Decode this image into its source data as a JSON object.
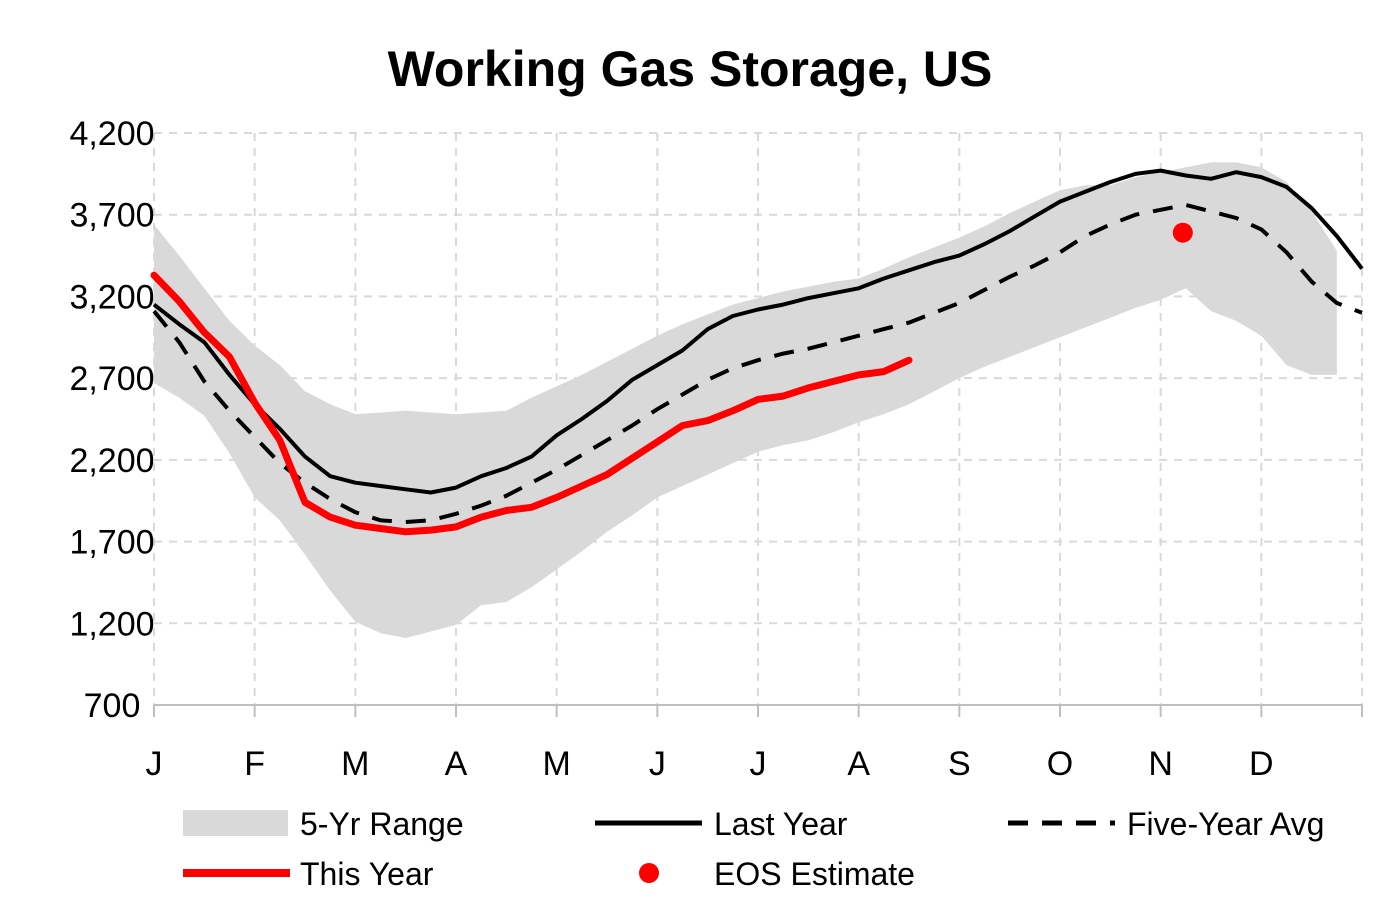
{
  "chart_data": {
    "type": "line",
    "title": "Working Gas Storage, US",
    "xlabel": "",
    "ylabel": "",
    "ylim": [
      700,
      4200
    ],
    "yticks": [
      "4,200",
      "3,700",
      "3,200",
      "2,700",
      "2,200",
      "1,700",
      "1,200",
      "700"
    ],
    "ytick_values": [
      4200,
      3700,
      3200,
      2700,
      2200,
      1700,
      1200,
      700
    ],
    "x_range": [
      0,
      12
    ],
    "month_labels": [
      "J",
      "F",
      "M",
      "A",
      "M",
      "J",
      "J",
      "A",
      "S",
      "O",
      "N",
      "D"
    ],
    "grid": true,
    "legend_position": "bottom",
    "legend": {
      "range": "5-Yr Range",
      "last_year": "Last Year",
      "five_year_avg": "Five-Year Avg",
      "this_year": "This Year",
      "eos": "EOS Estimate"
    },
    "colors": {
      "range": "#d9d9d9",
      "last_year": "#000000",
      "five_year_avg": "#000000",
      "this_year": "#ff0000",
      "eos": "#ff0000",
      "grid": "#d9d9d9"
    },
    "series": [
      {
        "name": "5-Yr Range",
        "kind": "band",
        "x": [
          0,
          0.25,
          0.5,
          0.75,
          1,
          1.25,
          1.5,
          1.75,
          2,
          2.25,
          2.5,
          2.75,
          3,
          3.25,
          3.5,
          3.75,
          4,
          4.25,
          4.5,
          4.75,
          5,
          5.25,
          5.5,
          5.75,
          6,
          6.25,
          6.5,
          6.75,
          7,
          7.25,
          7.5,
          7.75,
          8,
          8.25,
          8.5,
          8.75,
          9,
          9.25,
          9.5,
          9.75,
          10,
          10.25,
          10.5,
          10.75,
          11,
          11.25,
          11.5,
          11.75
        ],
        "upper": [
          3640,
          3450,
          3250,
          3050,
          2900,
          2780,
          2620,
          2540,
          2480,
          2490,
          2500,
          2490,
          2480,
          2490,
          2500,
          2580,
          2650,
          2720,
          2800,
          2880,
          2960,
          3030,
          3090,
          3150,
          3190,
          3230,
          3260,
          3290,
          3310,
          3370,
          3440,
          3500,
          3560,
          3630,
          3710,
          3780,
          3850,
          3880,
          3880,
          3930,
          3960,
          3990,
          4020,
          4020,
          3990,
          3900,
          3720,
          3480
        ],
        "lower": [
          2670,
          2580,
          2470,
          2240,
          1970,
          1830,
          1620,
          1400,
          1210,
          1140,
          1110,
          1150,
          1190,
          1310,
          1330,
          1420,
          1530,
          1640,
          1760,
          1860,
          1970,
          2040,
          2110,
          2180,
          2250,
          2290,
          2320,
          2370,
          2430,
          2480,
          2540,
          2620,
          2700,
          2770,
          2830,
          2890,
          2950,
          3010,
          3070,
          3130,
          3180,
          3250,
          3110,
          3050,
          2960,
          2780,
          2720,
          2720
        ]
      },
      {
        "name": "Last Year",
        "kind": "solid",
        "x": [
          0,
          0.25,
          0.5,
          0.75,
          1,
          1.25,
          1.5,
          1.75,
          2,
          2.25,
          2.5,
          2.75,
          3,
          3.25,
          3.5,
          3.75,
          4,
          4.25,
          4.5,
          4.75,
          5,
          5.25,
          5.5,
          5.75,
          6,
          6.25,
          6.5,
          6.75,
          7,
          7.25,
          7.5,
          7.75,
          8,
          8.25,
          8.5,
          8.75,
          9,
          9.25,
          9.5,
          9.75,
          10,
          10.25,
          10.5,
          10.75,
          11,
          11.25,
          11.5,
          11.75,
          12
        ],
        "y": [
          3150,
          3030,
          2920,
          2720,
          2540,
          2390,
          2220,
          2100,
          2060,
          2040,
          2020,
          2000,
          2030,
          2100,
          2150,
          2220,
          2350,
          2450,
          2560,
          2690,
          2780,
          2870,
          3000,
          3080,
          3120,
          3150,
          3190,
          3220,
          3250,
          3310,
          3360,
          3410,
          3450,
          3520,
          3600,
          3690,
          3780,
          3840,
          3900,
          3950,
          3970,
          3940,
          3920,
          3960,
          3930,
          3870,
          3740,
          3570,
          3370
        ]
      },
      {
        "name": "Five-Year Avg",
        "kind": "dashed",
        "x": [
          0,
          0.25,
          0.5,
          0.75,
          1,
          1.25,
          1.5,
          1.75,
          2,
          2.25,
          2.5,
          2.75,
          3,
          3.25,
          3.5,
          3.75,
          4,
          4.25,
          4.5,
          4.75,
          5,
          5.25,
          5.5,
          5.75,
          6,
          6.25,
          6.5,
          6.75,
          7,
          7.25,
          7.5,
          7.75,
          8,
          8.25,
          8.5,
          8.75,
          9,
          9.25,
          9.5,
          9.75,
          10,
          10.25,
          10.5,
          10.75,
          11,
          11.25,
          11.5,
          11.75,
          12
        ],
        "y": [
          3110,
          2920,
          2680,
          2500,
          2340,
          2180,
          2060,
          1960,
          1880,
          1830,
          1820,
          1830,
          1870,
          1920,
          1980,
          2060,
          2140,
          2230,
          2320,
          2410,
          2510,
          2600,
          2690,
          2760,
          2810,
          2850,
          2880,
          2920,
          2960,
          3000,
          3040,
          3100,
          3160,
          3240,
          3320,
          3390,
          3470,
          3570,
          3640,
          3700,
          3730,
          3760,
          3720,
          3680,
          3610,
          3470,
          3290,
          3160,
          3100
        ]
      },
      {
        "name": "This Year",
        "kind": "solid-thick",
        "x": [
          0,
          0.25,
          0.5,
          0.75,
          1,
          1.25,
          1.5,
          1.75,
          2,
          2.25,
          2.5,
          2.75,
          3,
          3.25,
          3.5,
          3.75,
          4,
          4.25,
          4.5,
          4.75,
          5,
          5.25,
          5.5,
          5.75,
          6,
          6.25,
          6.5,
          6.75,
          7,
          7.25,
          7.5
        ],
        "y": [
          3330,
          3170,
          2980,
          2830,
          2550,
          2320,
          1940,
          1850,
          1800,
          1780,
          1760,
          1770,
          1790,
          1850,
          1890,
          1910,
          1970,
          2040,
          2110,
          2210,
          2310,
          2410,
          2440,
          2500,
          2570,
          2590,
          2640,
          2680,
          2720,
          2740,
          2810
        ]
      },
      {
        "name": "EOS Estimate",
        "kind": "point",
        "x": [
          10.22
        ],
        "y": [
          3590
        ]
      }
    ]
  }
}
